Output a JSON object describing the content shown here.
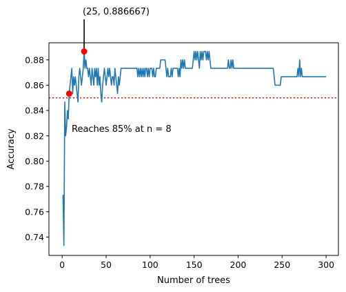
{
  "chart_data": {
    "type": "line",
    "title": "",
    "xlabel": "Number of trees",
    "ylabel": "Accuracy",
    "xlim": [
      -15,
      314
    ],
    "ylim": [
      0.7255,
      0.8935
    ],
    "xticks": [
      0,
      50,
      100,
      150,
      200,
      250,
      300
    ],
    "yticks": [
      0.74,
      0.76,
      0.78,
      0.8,
      0.82,
      0.84,
      0.86,
      0.88
    ],
    "ytick_labels": [
      "0.74",
      "0.76",
      "0.78",
      "0.80",
      "0.82",
      "0.84",
      "0.86",
      "0.88"
    ],
    "grid": false,
    "line_color": "#1f77b4",
    "threshold": {
      "y": 0.85,
      "color": "#ff0000",
      "style": "dotted"
    },
    "markers": [
      {
        "x": 8,
        "y": 0.853333,
        "color": "#ff0000"
      },
      {
        "x": 25,
        "y": 0.886667,
        "color": "#ff0000"
      }
    ],
    "annotations": [
      {
        "text": "Reaches 85% at n = 8",
        "x": 12,
        "y": 0.825
      },
      {
        "text": "(25, 0.886667)",
        "x": 25,
        "y": 0.886667
      }
    ],
    "series": [
      {
        "values": [
          [
            1,
            0.773333
          ],
          [
            2,
            0.733333
          ],
          [
            3,
            0.846667
          ],
          [
            4,
            0.82
          ],
          [
            5,
            0.826667
          ],
          [
            6,
            0.84
          ],
          [
            7,
            0.833333
          ],
          [
            8,
            0.853333
          ],
          [
            9,
            0.86
          ],
          [
            10,
            0.866667
          ],
          [
            11,
            0.873333
          ],
          [
            12,
            0.853333
          ],
          [
            13,
            0.866667
          ],
          [
            14,
            0.86
          ],
          [
            15,
            0.866667
          ],
          [
            16,
            0.86
          ],
          [
            17,
            0.853333
          ],
          [
            18,
            0.846667
          ],
          [
            19,
            0.866667
          ],
          [
            20,
            0.873333
          ],
          [
            21,
            0.866667
          ],
          [
            22,
            0.86
          ],
          [
            23,
            0.866667
          ],
          [
            24,
            0.873333
          ],
          [
            25,
            0.886667
          ],
          [
            26,
            0.873333
          ],
          [
            27,
            0.88
          ],
          [
            28,
            0.873333
          ],
          [
            29,
            0.873333
          ],
          [
            30,
            0.866667
          ],
          [
            31,
            0.873333
          ],
          [
            32,
            0.866667
          ],
          [
            33,
            0.86
          ],
          [
            34,
            0.873333
          ],
          [
            35,
            0.866667
          ],
          [
            36,
            0.86
          ],
          [
            37,
            0.873333
          ],
          [
            38,
            0.866667
          ],
          [
            39,
            0.873333
          ],
          [
            40,
            0.86
          ],
          [
            41,
            0.873333
          ],
          [
            42,
            0.86
          ],
          [
            43,
            0.866667
          ],
          [
            44,
            0.853333
          ],
          [
            45,
            0.846667
          ],
          [
            46,
            0.86
          ],
          [
            47,
            0.866667
          ],
          [
            48,
            0.873333
          ],
          [
            49,
            0.866667
          ],
          [
            50,
            0.86
          ],
          [
            51,
            0.866667
          ],
          [
            52,
            0.873333
          ],
          [
            53,
            0.866667
          ],
          [
            54,
            0.873333
          ],
          [
            55,
            0.866667
          ],
          [
            56,
            0.86
          ],
          [
            57,
            0.866667
          ],
          [
            58,
            0.866667
          ],
          [
            59,
            0.86
          ],
          [
            60,
            0.873333
          ],
          [
            61,
            0.866667
          ],
          [
            62,
            0.86
          ],
          [
            63,
            0.853333
          ],
          [
            64,
            0.866667
          ],
          [
            65,
            0.86
          ],
          [
            66,
            0.866667
          ],
          [
            67,
            0.873333
          ],
          [
            68,
            0.873333
          ],
          [
            69,
            0.873333
          ],
          [
            70,
            0.873333
          ],
          [
            71,
            0.873333
          ],
          [
            72,
            0.873333
          ],
          [
            73,
            0.873333
          ],
          [
            74,
            0.873333
          ],
          [
            75,
            0.873333
          ],
          [
            76,
            0.873333
          ],
          [
            77,
            0.873333
          ],
          [
            78,
            0.873333
          ],
          [
            79,
            0.873333
          ],
          [
            80,
            0.873333
          ],
          [
            81,
            0.873333
          ],
          [
            82,
            0.873333
          ],
          [
            83,
            0.873333
          ],
          [
            84,
            0.873333
          ],
          [
            85,
            0.873333
          ],
          [
            86,
            0.866667
          ],
          [
            87,
            0.873333
          ],
          [
            88,
            0.866667
          ],
          [
            89,
            0.873333
          ],
          [
            90,
            0.866667
          ],
          [
            91,
            0.873333
          ],
          [
            92,
            0.866667
          ],
          [
            93,
            0.873333
          ],
          [
            94,
            0.866667
          ],
          [
            95,
            0.873333
          ],
          [
            96,
            0.873333
          ],
          [
            97,
            0.866667
          ],
          [
            98,
            0.873333
          ],
          [
            99,
            0.866667
          ],
          [
            100,
            0.873333
          ],
          [
            101,
            0.873333
          ],
          [
            102,
            0.873333
          ],
          [
            103,
            0.866667
          ],
          [
            104,
            0.873333
          ],
          [
            105,
            0.866667
          ],
          [
            106,
            0.866667
          ],
          [
            107,
            0.873333
          ],
          [
            108,
            0.873333
          ],
          [
            109,
            0.873333
          ],
          [
            110,
            0.873333
          ],
          [
            111,
            0.873333
          ],
          [
            112,
            0.88
          ],
          [
            113,
            0.88
          ],
          [
            114,
            0.88
          ],
          [
            115,
            0.88
          ],
          [
            116,
            0.88
          ],
          [
            117,
            0.88
          ],
          [
            118,
            0.873333
          ],
          [
            119,
            0.866667
          ],
          [
            120,
            0.873333
          ],
          [
            121,
            0.866667
          ],
          [
            122,
            0.866667
          ],
          [
            123,
            0.866667
          ],
          [
            124,
            0.873333
          ],
          [
            125,
            0.866667
          ],
          [
            126,
            0.873333
          ],
          [
            127,
            0.873333
          ],
          [
            128,
            0.873333
          ],
          [
            129,
            0.873333
          ],
          [
            130,
            0.873333
          ],
          [
            131,
            0.873333
          ],
          [
            132,
            0.866667
          ],
          [
            133,
            0.873333
          ],
          [
            134,
            0.866667
          ],
          [
            135,
            0.88
          ],
          [
            136,
            0.873333
          ],
          [
            137,
            0.88
          ],
          [
            138,
            0.873333
          ],
          [
            139,
            0.88
          ],
          [
            140,
            0.873333
          ],
          [
            141,
            0.873333
          ],
          [
            142,
            0.873333
          ],
          [
            143,
            0.873333
          ],
          [
            144,
            0.873333
          ],
          [
            145,
            0.873333
          ],
          [
            146,
            0.873333
          ],
          [
            147,
            0.873333
          ],
          [
            148,
            0.873333
          ],
          [
            149,
            0.88
          ],
          [
            150,
            0.886667
          ],
          [
            151,
            0.88
          ],
          [
            152,
            0.886667
          ],
          [
            153,
            0.88
          ],
          [
            154,
            0.886667
          ],
          [
            155,
            0.88
          ],
          [
            156,
            0.873333
          ],
          [
            157,
            0.886667
          ],
          [
            158,
            0.88
          ],
          [
            159,
            0.886667
          ],
          [
            160,
            0.88
          ],
          [
            161,
            0.886667
          ],
          [
            162,
            0.886667
          ],
          [
            163,
            0.886667
          ],
          [
            164,
            0.88
          ],
          [
            165,
            0.886667
          ],
          [
            166,
            0.88
          ],
          [
            167,
            0.886667
          ],
          [
            168,
            0.88
          ],
          [
            169,
            0.873333
          ],
          [
            170,
            0.873333
          ],
          [
            171,
            0.873333
          ],
          [
            172,
            0.873333
          ],
          [
            173,
            0.873333
          ],
          [
            174,
            0.873333
          ],
          [
            175,
            0.873333
          ],
          [
            176,
            0.873333
          ],
          [
            177,
            0.873333
          ],
          [
            178,
            0.873333
          ],
          [
            179,
            0.873333
          ],
          [
            180,
            0.873333
          ],
          [
            181,
            0.873333
          ],
          [
            182,
            0.873333
          ],
          [
            183,
            0.873333
          ],
          [
            184,
            0.873333
          ],
          [
            185,
            0.873333
          ],
          [
            186,
            0.873333
          ],
          [
            187,
            0.873333
          ],
          [
            188,
            0.873333
          ],
          [
            189,
            0.88
          ],
          [
            190,
            0.873333
          ],
          [
            191,
            0.873333
          ],
          [
            192,
            0.88
          ],
          [
            193,
            0.873333
          ],
          [
            194,
            0.88
          ],
          [
            195,
            0.873333
          ],
          [
            196,
            0.873333
          ],
          [
            197,
            0.873333
          ],
          [
            198,
            0.873333
          ],
          [
            199,
            0.873333
          ],
          [
            200,
            0.873333
          ],
          [
            201,
            0.873333
          ],
          [
            202,
            0.873333
          ],
          [
            203,
            0.873333
          ],
          [
            204,
            0.873333
          ],
          [
            205,
            0.873333
          ],
          [
            206,
            0.873333
          ],
          [
            207,
            0.873333
          ],
          [
            208,
            0.873333
          ],
          [
            209,
            0.873333
          ],
          [
            210,
            0.873333
          ],
          [
            211,
            0.873333
          ],
          [
            212,
            0.873333
          ],
          [
            213,
            0.873333
          ],
          [
            214,
            0.873333
          ],
          [
            215,
            0.873333
          ],
          [
            216,
            0.873333
          ],
          [
            217,
            0.873333
          ],
          [
            218,
            0.873333
          ],
          [
            219,
            0.873333
          ],
          [
            220,
            0.873333
          ],
          [
            221,
            0.873333
          ],
          [
            222,
            0.873333
          ],
          [
            223,
            0.873333
          ],
          [
            224,
            0.873333
          ],
          [
            225,
            0.873333
          ],
          [
            226,
            0.873333
          ],
          [
            227,
            0.873333
          ],
          [
            228,
            0.873333
          ],
          [
            229,
            0.873333
          ],
          [
            230,
            0.873333
          ],
          [
            231,
            0.873333
          ],
          [
            232,
            0.873333
          ],
          [
            233,
            0.873333
          ],
          [
            234,
            0.873333
          ],
          [
            235,
            0.873333
          ],
          [
            236,
            0.873333
          ],
          [
            237,
            0.873333
          ],
          [
            238,
            0.873333
          ],
          [
            239,
            0.873333
          ],
          [
            240,
            0.873333
          ],
          [
            241,
            0.866667
          ],
          [
            242,
            0.86
          ],
          [
            243,
            0.86
          ],
          [
            244,
            0.86
          ],
          [
            245,
            0.86
          ],
          [
            246,
            0.86
          ],
          [
            247,
            0.86
          ],
          [
            248,
            0.86
          ],
          [
            249,
            0.866667
          ],
          [
            250,
            0.866667
          ],
          [
            251,
            0.866667
          ],
          [
            252,
            0.866667
          ],
          [
            253,
            0.866667
          ],
          [
            254,
            0.866667
          ],
          [
            255,
            0.866667
          ],
          [
            256,
            0.866667
          ],
          [
            257,
            0.866667
          ],
          [
            258,
            0.866667
          ],
          [
            259,
            0.866667
          ],
          [
            260,
            0.866667
          ],
          [
            261,
            0.866667
          ],
          [
            262,
            0.866667
          ],
          [
            263,
            0.866667
          ],
          [
            264,
            0.866667
          ],
          [
            265,
            0.866667
          ],
          [
            266,
            0.866667
          ],
          [
            267,
            0.866667
          ],
          [
            268,
            0.873333
          ],
          [
            269,
            0.866667
          ],
          [
            270,
            0.88
          ],
          [
            271,
            0.866667
          ],
          [
            272,
            0.873333
          ],
          [
            273,
            0.866667
          ],
          [
            274,
            0.866667
          ],
          [
            275,
            0.866667
          ],
          [
            276,
            0.866667
          ],
          [
            277,
            0.866667
          ],
          [
            278,
            0.866667
          ],
          [
            279,
            0.866667
          ],
          [
            280,
            0.866667
          ],
          [
            281,
            0.866667
          ],
          [
            282,
            0.866667
          ],
          [
            283,
            0.866667
          ],
          [
            284,
            0.866667
          ],
          [
            285,
            0.866667
          ],
          [
            286,
            0.866667
          ],
          [
            287,
            0.866667
          ],
          [
            288,
            0.866667
          ],
          [
            289,
            0.866667
          ],
          [
            290,
            0.866667
          ],
          [
            291,
            0.866667
          ],
          [
            292,
            0.866667
          ],
          [
            293,
            0.866667
          ],
          [
            294,
            0.866667
          ],
          [
            295,
            0.866667
          ],
          [
            296,
            0.866667
          ],
          [
            297,
            0.866667
          ],
          [
            298,
            0.866667
          ],
          [
            299,
            0.866667
          ],
          [
            300,
            0.866667
          ]
        ]
      }
    ]
  }
}
